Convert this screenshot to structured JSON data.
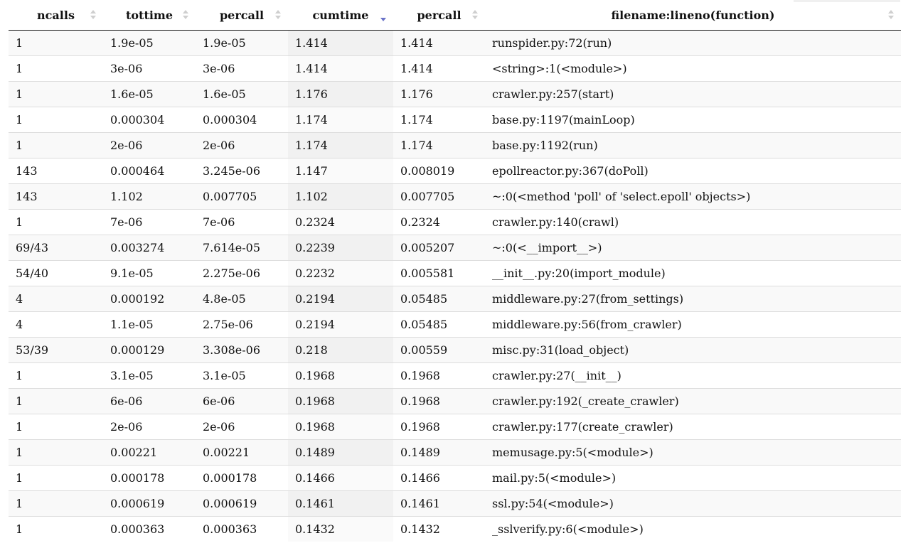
{
  "table": {
    "columns": [
      {
        "label": "ncalls",
        "sort": "none"
      },
      {
        "label": "tottime",
        "sort": "none"
      },
      {
        "label": "percall",
        "sort": "none"
      },
      {
        "label": "cumtime",
        "sort": "descending"
      },
      {
        "label": "percall",
        "sort": "none"
      },
      {
        "label": "filename:lineno(function)",
        "sort": "none"
      }
    ],
    "rows": [
      [
        "1",
        "1.9e-05",
        "1.9e-05",
        "1.414",
        "1.414",
        "runspider.py:72(run)"
      ],
      [
        "1",
        "3e-06",
        "3e-06",
        "1.414",
        "1.414",
        "<string>:1(<module>)"
      ],
      [
        "1",
        "1.6e-05",
        "1.6e-05",
        "1.176",
        "1.176",
        "crawler.py:257(start)"
      ],
      [
        "1",
        "0.000304",
        "0.000304",
        "1.174",
        "1.174",
        "base.py:1197(mainLoop)"
      ],
      [
        "1",
        "2e-06",
        "2e-06",
        "1.174",
        "1.174",
        "base.py:1192(run)"
      ],
      [
        "143",
        "0.000464",
        "3.245e-06",
        "1.147",
        "0.008019",
        "epollreactor.py:367(doPoll)"
      ],
      [
        "143",
        "1.102",
        "0.007705",
        "1.102",
        "0.007705",
        "~:0(<method 'poll' of 'select.epoll' objects>)"
      ],
      [
        "1",
        "7e-06",
        "7e-06",
        "0.2324",
        "0.2324",
        "crawler.py:140(crawl)"
      ],
      [
        "69/43",
        "0.003274",
        "7.614e-05",
        "0.2239",
        "0.005207",
        "~:0(<__import__>)"
      ],
      [
        "54/40",
        "9.1e-05",
        "2.275e-06",
        "0.2232",
        "0.005581",
        "__init__.py:20(import_module)"
      ],
      [
        "4",
        "0.000192",
        "4.8e-05",
        "0.2194",
        "0.05485",
        "middleware.py:27(from_settings)"
      ],
      [
        "4",
        "1.1e-05",
        "2.75e-06",
        "0.2194",
        "0.05485",
        "middleware.py:56(from_crawler)"
      ],
      [
        "53/39",
        "0.000129",
        "3.308e-06",
        "0.218",
        "0.00559",
        "misc.py:31(load_object)"
      ],
      [
        "1",
        "3.1e-05",
        "3.1e-05",
        "0.1968",
        "0.1968",
        "crawler.py:27(__init__)"
      ],
      [
        "1",
        "6e-06",
        "6e-06",
        "0.1968",
        "0.1968",
        "crawler.py:192(_create_crawler)"
      ],
      [
        "1",
        "2e-06",
        "2e-06",
        "0.1968",
        "0.1968",
        "crawler.py:177(create_crawler)"
      ],
      [
        "1",
        "0.00221",
        "0.00221",
        "0.1489",
        "0.1489",
        "memusage.py:5(<module>)"
      ],
      [
        "1",
        "0.000178",
        "0.000178",
        "0.1466",
        "0.1466",
        "mail.py:5(<module>)"
      ],
      [
        "1",
        "0.000619",
        "0.000619",
        "0.1461",
        "0.1461",
        "ssl.py:54(<module>)"
      ],
      [
        "1",
        "0.000363",
        "0.000363",
        "0.1432",
        "0.1432",
        "_sslverify.py:6(<module>)"
      ]
    ]
  },
  "colors": {
    "row_odd": "#f9f9f9",
    "row_even": "#ffffff",
    "sorted_column": "#f1f1f1",
    "sort_active_arrow": "#6a73c8",
    "sort_inactive_arrow": "#cfcfcf"
  }
}
